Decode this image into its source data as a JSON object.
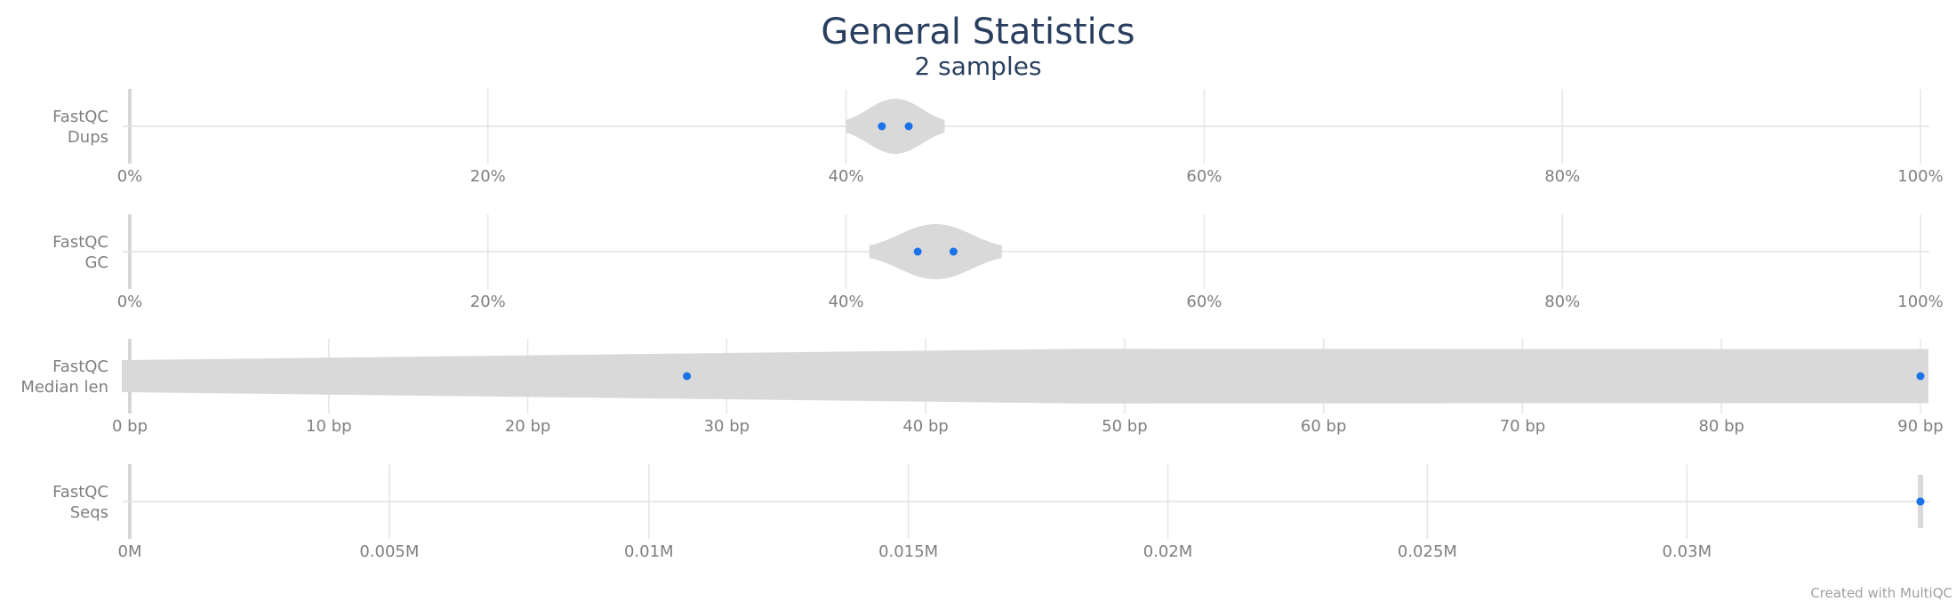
{
  "chart_data": {
    "type": "violin",
    "title": "General Statistics",
    "subtitle": "2 samples",
    "credit": "Created with MultiQC",
    "point_color": "#1a73e8",
    "violin_color": "#d9d9d9",
    "panels": [
      {
        "label_lines": [
          "FastQC",
          "Dups"
        ],
        "xlim": [
          0,
          100
        ],
        "ticks": [
          0,
          20,
          40,
          60,
          80,
          100
        ],
        "tick_labels": [
          "0%",
          "20%",
          "40%",
          "60%",
          "80%",
          "100%"
        ],
        "values": [
          42.0,
          43.5
        ],
        "violin_range": [
          40.0,
          45.5
        ]
      },
      {
        "label_lines": [
          "FastQC",
          "GC"
        ],
        "xlim": [
          0,
          100
        ],
        "ticks": [
          0,
          20,
          40,
          60,
          80,
          100
        ],
        "tick_labels": [
          "0%",
          "20%",
          "40%",
          "60%",
          "80%",
          "100%"
        ],
        "values": [
          44.0,
          46.0
        ],
        "violin_range": [
          41.3,
          48.7
        ]
      },
      {
        "label_lines": [
          "FastQC",
          "Median len"
        ],
        "xlim": [
          0,
          90
        ],
        "ticks": [
          0,
          10,
          20,
          30,
          40,
          50,
          60,
          70,
          80,
          90
        ],
        "tick_labels": [
          "0 bp",
          "10 bp",
          "20 bp",
          "30 bp",
          "40 bp",
          "50 bp",
          "60 bp",
          "70 bp",
          "80 bp",
          "90 bp"
        ],
        "values": [
          28,
          90
        ],
        "violin_range": [
          -0.4,
          90.4
        ]
      },
      {
        "label_lines": [
          "FastQC",
          "Seqs"
        ],
        "xlim": [
          0,
          0.0345
        ],
        "ticks": [
          0,
          0.005,
          0.01,
          0.015,
          0.02,
          0.025,
          0.03
        ],
        "tick_labels": [
          "0M",
          "0.005M",
          "0.01M",
          "0.015M",
          "0.02M",
          "0.025M",
          "0.03M"
        ],
        "values": [
          0.0345,
          0.0345
        ],
        "violin_range": [
          0.0345,
          0.0345
        ]
      }
    ]
  }
}
